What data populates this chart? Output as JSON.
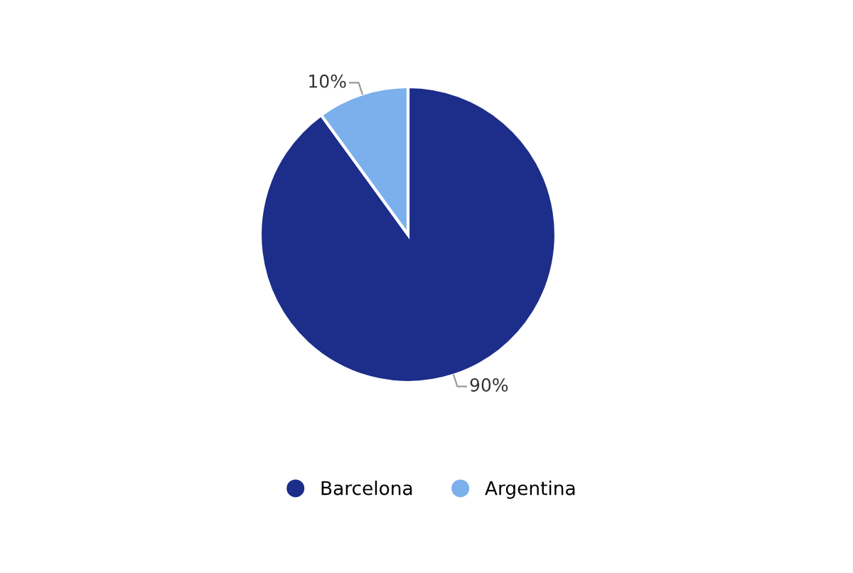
{
  "chart_data": {
    "type": "pie",
    "categories": [
      "Barcelona",
      "Argentina"
    ],
    "values": [
      90,
      10
    ],
    "colors": [
      "#1c2e8a",
      "#7cb0ec"
    ],
    "value_labels": [
      "90%",
      "10%"
    ],
    "legend": "bottom"
  }
}
